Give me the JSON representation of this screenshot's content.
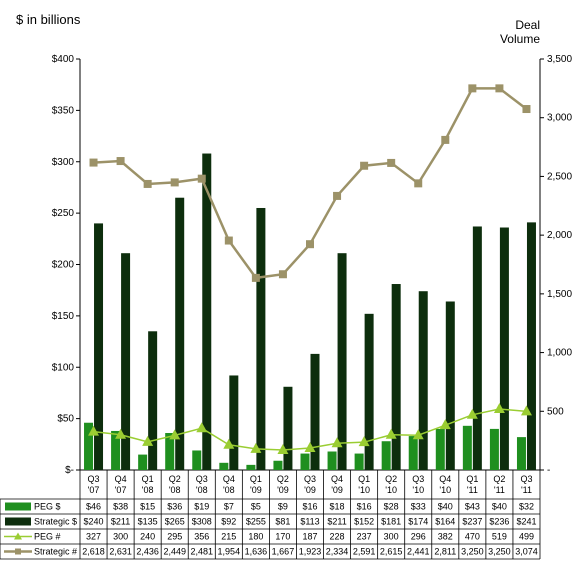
{
  "chart_data": {
    "type": "bar",
    "ylabel": "$ in billions",
    "y2label_line1": "Deal",
    "y2label_line2": "Volume",
    "ylim": [
      0,
      400
    ],
    "y2lim": [
      0,
      3500
    ],
    "yticks": [
      "$-",
      "$50",
      "$100",
      "$150",
      "$200",
      "$250",
      "$300",
      "$350",
      "$400"
    ],
    "y2ticks": [
      "-",
      "500",
      "1,000",
      "1,500",
      "2,000",
      "2,500",
      "3,000",
      "3,500"
    ],
    "categories": [
      {
        "q": "Q3",
        "y": "'07"
      },
      {
        "q": "Q4",
        "y": "'07"
      },
      {
        "q": "Q1",
        "y": "'08"
      },
      {
        "q": "Q2",
        "y": "'08"
      },
      {
        "q": "Q3",
        "y": "'08"
      },
      {
        "q": "Q4",
        "y": "'08"
      },
      {
        "q": "Q1",
        "y": "'09"
      },
      {
        "q": "Q2",
        "y": "'09"
      },
      {
        "q": "Q3",
        "y": "'09"
      },
      {
        "q": "Q4",
        "y": "'09"
      },
      {
        "q": "Q1",
        "y": "'10"
      },
      {
        "q": "Q2",
        "y": "'10"
      },
      {
        "q": "Q3",
        "y": "'10"
      },
      {
        "q": "Q4",
        "y": "'10"
      },
      {
        "q": "Q1",
        "y": "'11"
      },
      {
        "q": "Q2",
        "y": "'11"
      },
      {
        "q": "Q3",
        "y": "'11"
      }
    ],
    "series": [
      {
        "name": "PEG $",
        "kind": "bar",
        "axis": "left",
        "color": "#1f8f1f",
        "values": [
          46,
          38,
          15,
          36,
          19,
          7,
          5,
          9,
          16,
          18,
          16,
          28,
          33,
          40,
          43,
          40,
          32
        ],
        "labels": [
          "$46",
          "$38",
          "$15",
          "$36",
          "$19",
          "$7",
          "$5",
          "$9",
          "$16",
          "$18",
          "$16",
          "$28",
          "$33",
          "$40",
          "$43",
          "$40",
          "$32"
        ]
      },
      {
        "name": "Strategic $",
        "kind": "bar",
        "axis": "left",
        "color": "#0d2e0d",
        "values": [
          240,
          211,
          135,
          265,
          308,
          92,
          255,
          81,
          113,
          211,
          152,
          181,
          174,
          164,
          237,
          236,
          241
        ],
        "labels": [
          "$240",
          "$211",
          "$135",
          "$265",
          "$308",
          "$92",
          "$255",
          "$81",
          "$113",
          "$211",
          "$152",
          "$181",
          "$174",
          "$164",
          "$237",
          "$236",
          "$241"
        ]
      },
      {
        "name": "PEG #",
        "kind": "line",
        "axis": "right",
        "color": "#9acd32",
        "marker": "triangle",
        "values": [
          327,
          300,
          240,
          295,
          356,
          215,
          180,
          170,
          187,
          228,
          237,
          300,
          296,
          382,
          470,
          519,
          499
        ],
        "labels": [
          "327",
          "300",
          "240",
          "295",
          "356",
          "215",
          "180",
          "170",
          "187",
          "228",
          "237",
          "300",
          "296",
          "382",
          "470",
          "519",
          "499"
        ]
      },
      {
        "name": "Strategic #",
        "kind": "line",
        "axis": "right",
        "color": "#9c9268",
        "marker": "square",
        "values": [
          2618,
          2631,
          2436,
          2449,
          2481,
          1954,
          1636,
          1667,
          1923,
          2334,
          2591,
          2615,
          2441,
          2811,
          3250,
          3250,
          3074
        ],
        "labels": [
          "2,618",
          "2,631",
          "2,436",
          "2,449",
          "2,481",
          "1,954",
          "1,636",
          "1,667",
          "1,923",
          "2,334",
          "2,591",
          "2,615",
          "2,441",
          "2,811",
          "3,250",
          "3,250",
          "3,074"
        ]
      }
    ]
  }
}
